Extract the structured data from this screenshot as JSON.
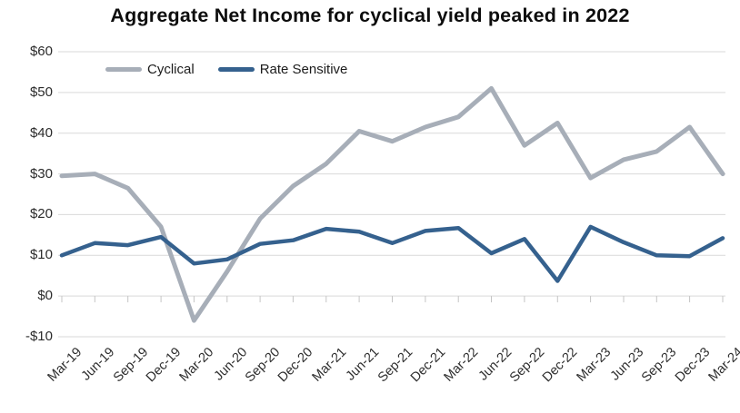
{
  "chart_data": {
    "type": "line",
    "title": "Aggregate Net Income for cyclical yield peaked in 2022",
    "categories": [
      "Mar-19",
      "Jun-19",
      "Sep-19",
      "Dec-19",
      "Mar-20",
      "Jun-20",
      "Sep-20",
      "Dec-20",
      "Mar-21",
      "Jun-21",
      "Sep-21",
      "Dec-21",
      "Mar-22",
      "Jun-22",
      "Sep-22",
      "Dec-22",
      "Mar-23",
      "Jun-23",
      "Sep-23",
      "Dec-23",
      "Mar-24"
    ],
    "series": [
      {
        "name": "Cyclical",
        "color": "#a7aeb8",
        "stroke_width": 5,
        "values": [
          29.5,
          30,
          26.5,
          17,
          -6,
          6,
          19,
          27,
          32.5,
          40.5,
          38,
          41.5,
          44,
          51,
          37,
          42.5,
          29,
          33.5,
          35.5,
          41.5,
          30
        ]
      },
      {
        "name": "Rate Sensitive",
        "color": "#35618e",
        "stroke_width": 4.5,
        "values": [
          10,
          13,
          12.5,
          14.5,
          8,
          9,
          12.8,
          13.7,
          16.5,
          15.8,
          13,
          16,
          16.7,
          10.5,
          14,
          3.7,
          17,
          13.2,
          10,
          9.8,
          14.2
        ]
      }
    ],
    "yticks": [
      {
        "label": "$60",
        "value": 60
      },
      {
        "label": "$50",
        "value": 50
      },
      {
        "label": "$40",
        "value": 40
      },
      {
        "label": "$30",
        "value": 30
      },
      {
        "label": "$20",
        "value": 20
      },
      {
        "label": "$10",
        "value": 10
      },
      {
        "label": "$0",
        "value": 0
      },
      {
        "label": "-$10",
        "value": -10
      }
    ],
    "ylim": [
      -10,
      60
    ],
    "xlabel": "",
    "ylabel": "",
    "grid": "horizontal",
    "gridline_color": "#d9d9d9",
    "tick_color": "#c4c4c4",
    "legend_position": "top-left-inside",
    "x_label_rotation": -45
  }
}
